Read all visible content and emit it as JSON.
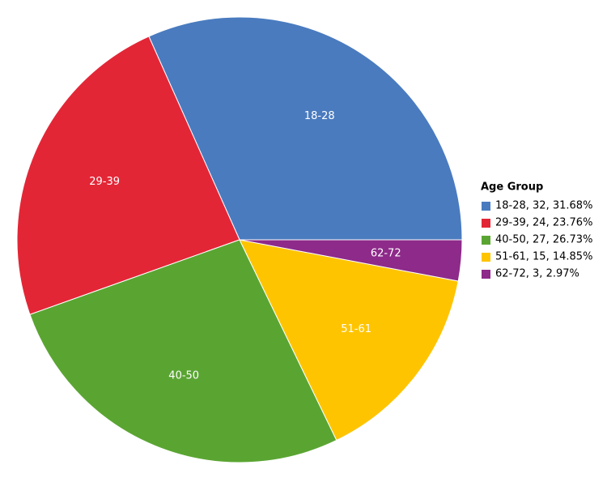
{
  "chart_data": {
    "type": "pie",
    "categories": [
      "18-28",
      "29-39",
      "40-50",
      "51-61",
      "62-72"
    ],
    "values": [
      32,
      24,
      27,
      15,
      3
    ],
    "colors": [
      "#4a7bbf",
      "#e32636",
      "#5aa532",
      "#ffc400",
      "#8e2a8a"
    ],
    "legend_title": "Age Group",
    "legend_labels": [
      "18-28, 32, 31.68%",
      "29-39, 24, 23.76%",
      "40-50, 27, 26.73%",
      "51-61, 15, 14.85%",
      "62-72, 3, 2.97%"
    ],
    "legend_position": "right"
  }
}
